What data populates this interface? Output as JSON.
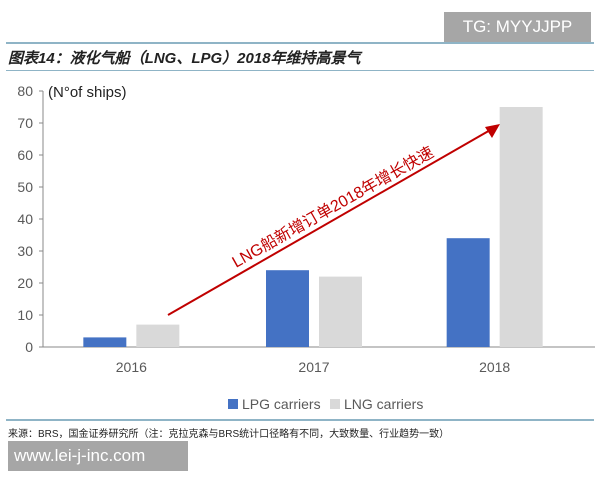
{
  "watermark_top": "TG: MYYJJPP",
  "title": "图表14：液化气船（LNG、LPG）2018年维持高景气",
  "source": "来源：BRS，国金证券研究所（注：克拉克森与BRS统计口径略有不同，大致数量、行业趋势一致）",
  "watermark_bottom": "www.lei-j-inc.com",
  "chart_data": {
    "type": "bar",
    "categories": [
      "2016",
      "2017",
      "2018"
    ],
    "series": [
      {
        "name": "LPG carriers",
        "color": "#4472c4",
        "values": [
          3,
          24,
          34
        ]
      },
      {
        "name": "LNG carriers",
        "color": "#d9d9d9",
        "values": [
          7,
          22,
          75
        ]
      }
    ],
    "ylabel": "(N°of ships)",
    "ylim": [
      0,
      80
    ],
    "yticks": [
      0,
      10,
      20,
      30,
      40,
      50,
      60,
      70,
      80
    ],
    "grid": false,
    "legend": "bottom",
    "annotation": {
      "text": "LNG船新增订单2018年增长快速",
      "color": "#c00000"
    }
  }
}
